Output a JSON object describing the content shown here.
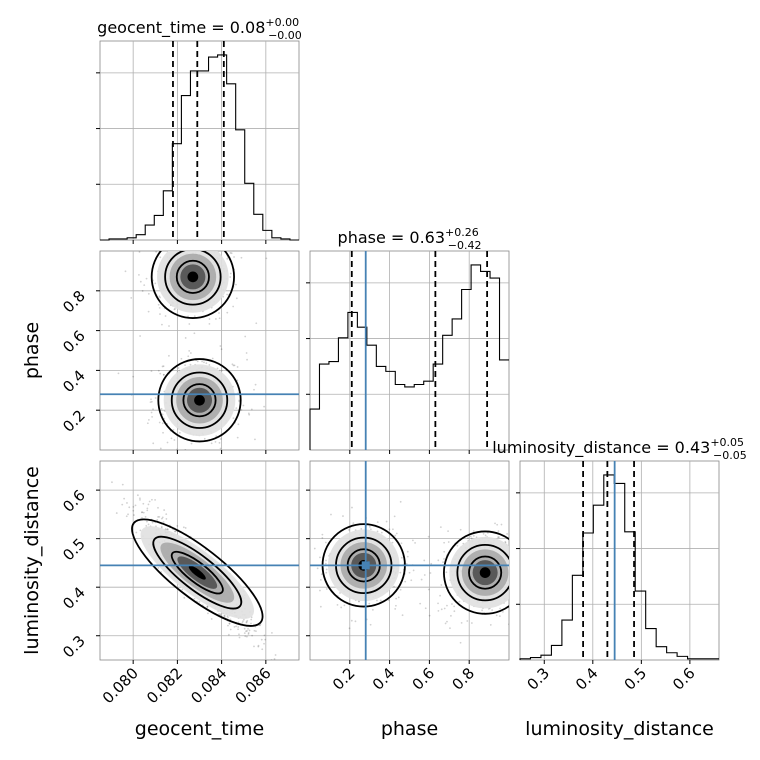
{
  "chart_data": {
    "type": "corner",
    "parameters": [
      "geocent_time",
      "phase",
      "luminosity_distance"
    ],
    "ranges": {
      "geocent_time": [
        0.0785,
        0.0875
      ],
      "phase": [
        0.0,
        1.0
      ],
      "luminosity_distance": [
        0.25,
        0.66
      ]
    },
    "ticks": {
      "geocent_time": [
        "0.080",
        "0.082",
        "0.084",
        "0.086"
      ],
      "phase": [
        "0.2",
        "0.4",
        "0.6",
        "0.8"
      ],
      "luminosity_distance": [
        "0.3",
        "0.4",
        "0.5",
        "0.6"
      ]
    },
    "truths": {
      "geocent_time": null,
      "phase": 0.28,
      "luminosity_distance": 0.445
    },
    "truth_color": "#4682b4",
    "diagonal": [
      {
        "param": "geocent_time",
        "title": {
          "prefix": "geocent_time = ",
          "median": "0.08",
          "plus": "+0.00",
          "minus": "−0.00"
        },
        "quantiles": [
          0.0818,
          0.0829,
          0.0841
        ],
        "hist_values": [
          0,
          1,
          1,
          2,
          5,
          14,
          23,
          46,
          90,
          135,
          158,
          158,
          171,
          173,
          146,
          103,
          53,
          24,
          9,
          2,
          1,
          0
        ]
      },
      {
        "param": "phase",
        "title": {
          "prefix": "phase = ",
          "median": "0.63",
          "plus": "+0.26",
          "minus": "−0.42"
        },
        "quantiles": [
          0.21,
          0.63,
          0.89
        ],
        "hist_values": [
          50,
          105,
          108,
          137,
          168,
          150,
          128,
          102,
          96,
          80,
          77,
          80,
          84,
          105,
          140,
          160,
          196,
          226,
          218,
          210,
          110
        ]
      },
      {
        "param": "luminosity_distance",
        "title": {
          "prefix": "luminosity_distance = ",
          "median": "0.43",
          "plus": "+0.05",
          "minus": "−0.05"
        },
        "quantiles": [
          0.38,
          0.43,
          0.485
        ],
        "hist_values": [
          1,
          2,
          4,
          12,
          33,
          70,
          105,
          128,
          153,
          146,
          106,
          57,
          26,
          11,
          6,
          3,
          1,
          1,
          1
        ]
      }
    ],
    "joint_modes": [
      {
        "x": "geocent_time",
        "y": "phase",
        "modes": [
          [
            0.0827,
            0.87
          ],
          [
            0.083,
            0.25
          ]
        ]
      },
      {
        "x": "geocent_time",
        "y": "luminosity_distance",
        "modes": [
          [
            0.0829,
            0.43
          ]
        ]
      },
      {
        "x": "phase",
        "y": "luminosity_distance",
        "modes": [
          [
            0.27,
            0.445
          ],
          [
            0.88,
            0.43
          ]
        ]
      }
    ]
  }
}
